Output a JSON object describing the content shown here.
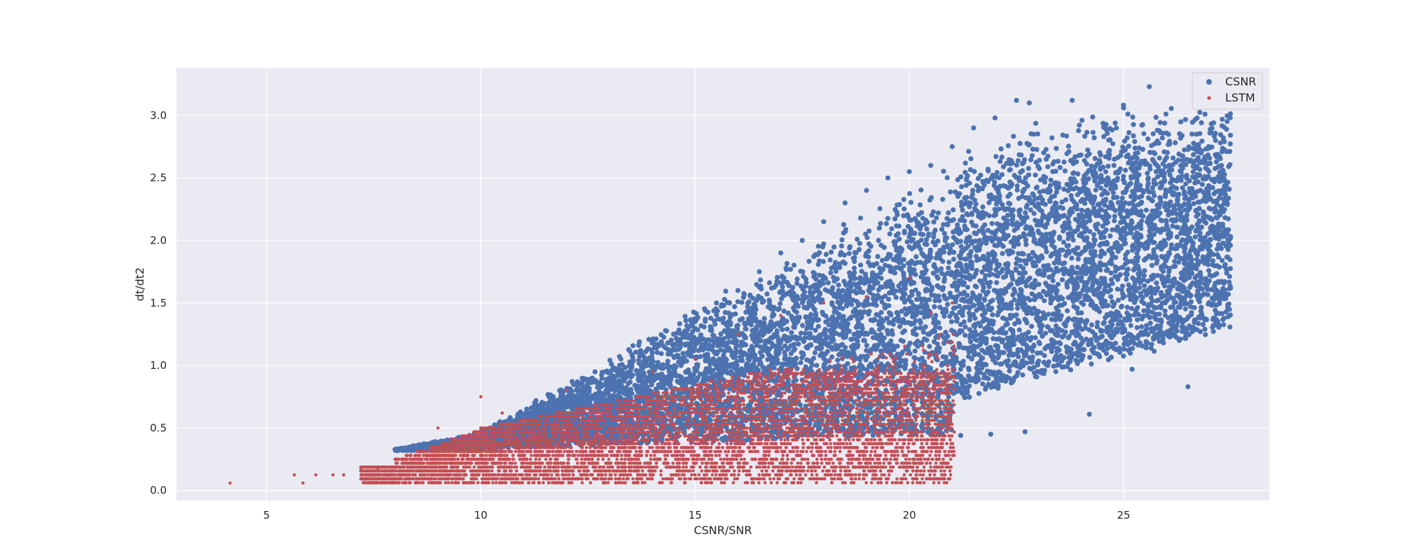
{
  "chart_data": {
    "type": "scatter",
    "title": "",
    "xlabel": "CSNR/SNR",
    "ylabel": "dt/dt2",
    "xlim": [
      2.9,
      28.4
    ],
    "ylim": [
      -0.08,
      3.38
    ],
    "xticks": [
      5,
      10,
      15,
      20,
      25
    ],
    "yticks": [
      0.0,
      0.5,
      1.0,
      1.5,
      2.0,
      2.5,
      3.0
    ],
    "xtick_labels": [
      "5",
      "10",
      "15",
      "20",
      "25"
    ],
    "ytick_labels": [
      "0.0",
      "0.5",
      "1.0",
      "1.5",
      "2.0",
      "2.5",
      "3.0"
    ],
    "grid": true,
    "legend_position": "top-right",
    "series": [
      {
        "name": "CSNR",
        "color": "#4c72b0",
        "marker": "large-circle",
        "description_of_cloud": "dense wedge from x≈8 (y≈0.33) widening to x≈27 (y 0.4–3.2)",
        "points": [
          [
            8.0,
            0.33
          ],
          [
            8.5,
            0.35
          ],
          [
            9.0,
            0.38
          ],
          [
            9.5,
            0.42
          ],
          [
            10.0,
            0.47
          ],
          [
            10.5,
            0.52
          ],
          [
            11.0,
            0.58
          ],
          [
            11.5,
            0.65
          ],
          [
            12.0,
            0.72
          ],
          [
            12.5,
            0.8
          ],
          [
            13.0,
            0.9
          ],
          [
            13.5,
            1.0
          ],
          [
            14.0,
            1.1
          ],
          [
            14.5,
            1.25
          ],
          [
            15.0,
            1.35
          ],
          [
            15.5,
            1.5
          ],
          [
            16.0,
            1.6
          ],
          [
            16.5,
            1.75
          ],
          [
            17.0,
            1.9
          ],
          [
            17.5,
            2.0
          ],
          [
            18.0,
            2.15
          ],
          [
            18.5,
            2.3
          ],
          [
            19.0,
            2.4
          ],
          [
            19.5,
            2.5
          ],
          [
            20.0,
            2.55
          ],
          [
            20.5,
            2.6
          ],
          [
            21.0,
            2.75
          ],
          [
            21.5,
            2.9
          ],
          [
            22.0,
            2.98
          ],
          [
            22.5,
            3.12
          ],
          [
            22.8,
            3.1
          ],
          [
            23.8,
            3.12
          ],
          [
            25.0,
            3.06
          ],
          [
            25.6,
            3.23
          ],
          [
            26.7,
            2.85
          ],
          [
            26.9,
            3.01
          ],
          [
            27.4,
            1.77
          ],
          [
            27.2,
            1.35
          ],
          [
            27.1,
            1.38
          ],
          [
            26.5,
            0.83
          ],
          [
            24.2,
            0.61
          ],
          [
            22.7,
            0.47
          ],
          [
            21.9,
            0.45
          ],
          [
            21.2,
            0.44
          ],
          [
            25.2,
            0.97
          ],
          [
            26.0,
            1.25
          ],
          [
            26.8,
            2.1
          ],
          [
            26.3,
            1.65
          ]
        ]
      },
      {
        "name": "LSTM",
        "color": "#c44e52",
        "marker": "small-circle",
        "description_of_cloud": "quantized horizontal bands (step ≈0.031) from y≈0.06 up to ≈1.5, capped at x≈21.05",
        "points": [
          [
            4.15,
            0.06
          ],
          [
            5.65,
            0.125
          ],
          [
            5.85,
            0.06
          ],
          [
            6.15,
            0.125
          ],
          [
            6.55,
            0.125
          ],
          [
            6.8,
            0.125
          ],
          [
            7.2,
            0.18
          ],
          [
            7.6,
            0.18
          ],
          [
            8.0,
            0.25
          ],
          [
            9.0,
            0.5
          ],
          [
            10.0,
            0.75
          ],
          [
            10.5,
            0.62
          ],
          [
            12.0,
            0.8
          ],
          [
            14.0,
            0.95
          ],
          [
            15.0,
            1.05
          ],
          [
            16.0,
            1.25
          ],
          [
            17.0,
            1.4
          ],
          [
            18.0,
            1.5
          ],
          [
            19.0,
            1.55
          ],
          [
            20.0,
            1.7
          ],
          [
            20.5,
            1.42
          ],
          [
            21.0,
            1.5
          ]
        ]
      }
    ]
  }
}
